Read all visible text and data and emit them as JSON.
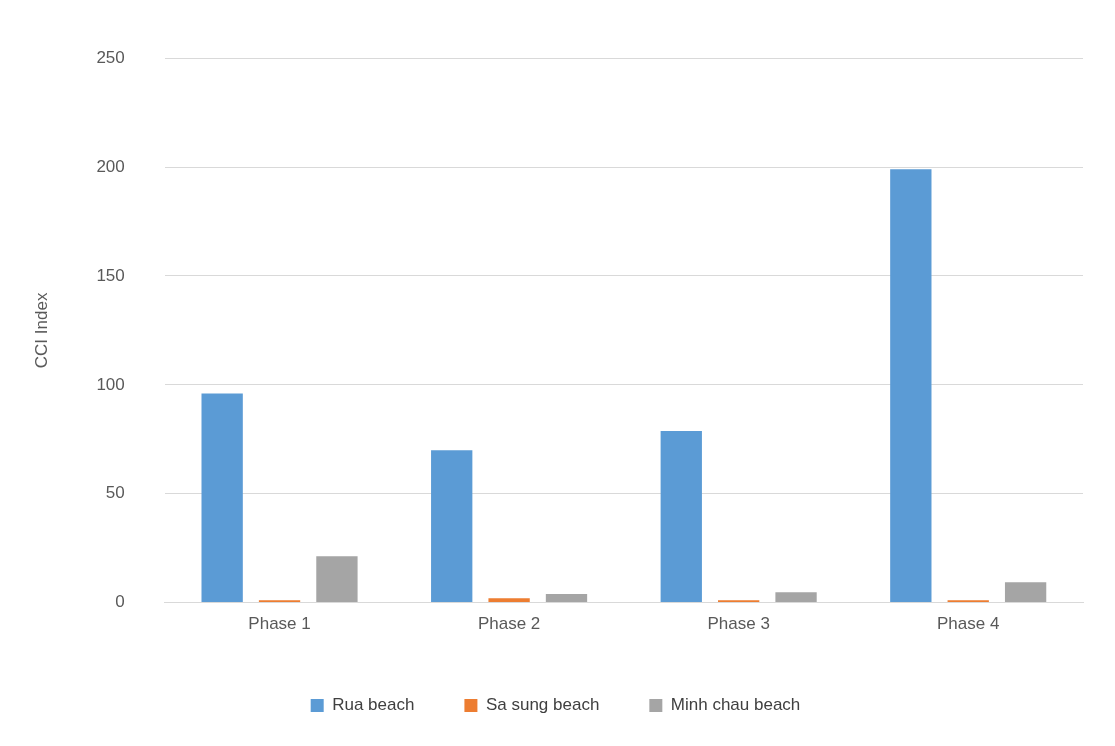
{
  "chart_data": {
    "type": "bar",
    "ylabel": "CCI Index",
    "categories": [
      "Phase 1",
      "Phase 2",
      "Phase 3",
      "Phase 4"
    ],
    "series": [
      {
        "name": "Rua beach",
        "color": "#5b9bd5",
        "values": [
          96,
          70,
          78.8,
          199
        ]
      },
      {
        "name": "Sa sung beach",
        "color": "#ed7d31",
        "values": [
          1.1,
          2,
          1.1,
          1.1
        ]
      },
      {
        "name": "Minh chau beach",
        "color": "#a5a5a5",
        "values": [
          21.3,
          4,
          4.8,
          9.4
        ]
      }
    ],
    "ylim": [
      0,
      250
    ],
    "yticks": [
      0,
      50,
      100,
      150,
      200,
      250
    ],
    "grid": "y",
    "legend": "bottom"
  }
}
